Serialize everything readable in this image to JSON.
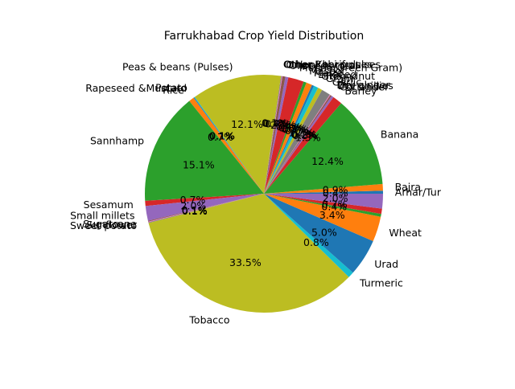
{
  "chart_data": {
    "type": "pie",
    "title": "Farrukhabad Crop Yield Distribution",
    "start_angle_deg": 0,
    "direction": "counterclockwise",
    "slices": [
      {
        "label": "Arhar/Tur",
        "value": 0.4,
        "color": "#1f77b4"
      },
      {
        "label": "Bajra",
        "value": 0.9,
        "color": "#ff7f0e"
      },
      {
        "label": "Banana",
        "value": 12.4,
        "color": "#2ca02c"
      },
      {
        "label": "Barley",
        "value": 1.3,
        "color": "#d62728"
      },
      {
        "label": "Coriander",
        "value": 0.3,
        "color": "#9467bd"
      },
      {
        "label": "Dry chillies",
        "value": 0.2,
        "color": "#8c564b"
      },
      {
        "label": "Dry ginger",
        "value": 0.1,
        "color": "#e377c2"
      },
      {
        "label": "Garlic",
        "value": 1.2,
        "color": "#7f7f7f"
      },
      {
        "label": "Gram",
        "value": 0.6,
        "color": "#bcbd22"
      },
      {
        "label": "Groundnut",
        "value": 0.6,
        "color": "#17becf"
      },
      {
        "label": "Linseed",
        "value": 0.3,
        "color": "#1f77b4"
      },
      {
        "label": "Maize",
        "value": 0.8,
        "color": "#ff7f0e"
      },
      {
        "label": "Masoor",
        "value": 0.4,
        "color": "#2ca02c"
      },
      {
        "label": "Moong(Green Gram)",
        "value": 2.1,
        "color": "#d62728"
      },
      {
        "label": "Oilseeds total",
        "value": 0.4,
        "color": "#9467bd"
      },
      {
        "label": "Onion",
        "value": 0.4,
        "color": "#8c564b"
      },
      {
        "label": "Other Kharif pulses",
        "value": 0.1,
        "color": "#e377c2"
      },
      {
        "label": "Other Rabi pulses",
        "value": 0.1,
        "color": "#7f7f7f"
      },
      {
        "label": "Peas & beans (Pulses)",
        "value": 12.1,
        "color": "#bcbd22"
      },
      {
        "label": "Potato",
        "value": 0.1,
        "color": "#17becf"
      },
      {
        "label": "Rapeseed &Mustard",
        "value": 0.1,
        "color": "#1f77b4"
      },
      {
        "label": "Rice",
        "value": 0.7,
        "color": "#ff7f0e"
      },
      {
        "label": "Sannhamp",
        "value": 15.1,
        "color": "#2ca02c"
      },
      {
        "label": "Sesamum",
        "value": 0.7,
        "color": "#d62728"
      },
      {
        "label": "Small millets",
        "value": 2.0,
        "color": "#9467bd"
      },
      {
        "label": "Sugarcane",
        "value": 0.1,
        "color": "#8c564b"
      },
      {
        "label": "Sunflower",
        "value": 0.1,
        "color": "#e377c2"
      },
      {
        "label": "Sweet potato",
        "value": 0.1,
        "color": "#7f7f7f"
      },
      {
        "label": "Tobacco",
        "value": 33.5,
        "color": "#bcbd22"
      },
      {
        "label": "Turmeric",
        "value": 0.8,
        "color": "#17becf"
      },
      {
        "label": "Urad",
        "value": 5.0,
        "color": "#1f77b4"
      },
      {
        "label": "Wheat",
        "value": 3.4,
        "color": "#ff7f0e"
      },
      {
        "label": "",
        "value": 0.4,
        "color": "#2ca02c"
      },
      {
        "label": "",
        "value": 0.7,
        "color": "#d62728"
      },
      {
        "label": "",
        "value": 2.0,
        "color": "#9467bd"
      }
    ],
    "percent_labels": [
      "0.4%",
      "0.9%",
      "12.4%",
      "1.3%",
      "0.3%",
      "0.2%",
      "0.1%",
      "1.2%",
      "0.6%",
      "0.6%",
      "0.3%",
      "0.8%",
      "0.4%",
      "2.1%",
      "0.4%",
      "0.4%",
      "0.1%",
      "0.1%",
      "12.1%",
      "0.1%",
      "0.1%",
      "0.7%",
      "15.1%",
      "0.7%",
      "2.0%",
      "0.1%",
      "0.1%",
      "0.1%",
      "33.5%",
      "0.8%",
      "5.0%",
      "3.4%",
      "0.4%",
      "0.7%",
      "2.0%"
    ]
  }
}
